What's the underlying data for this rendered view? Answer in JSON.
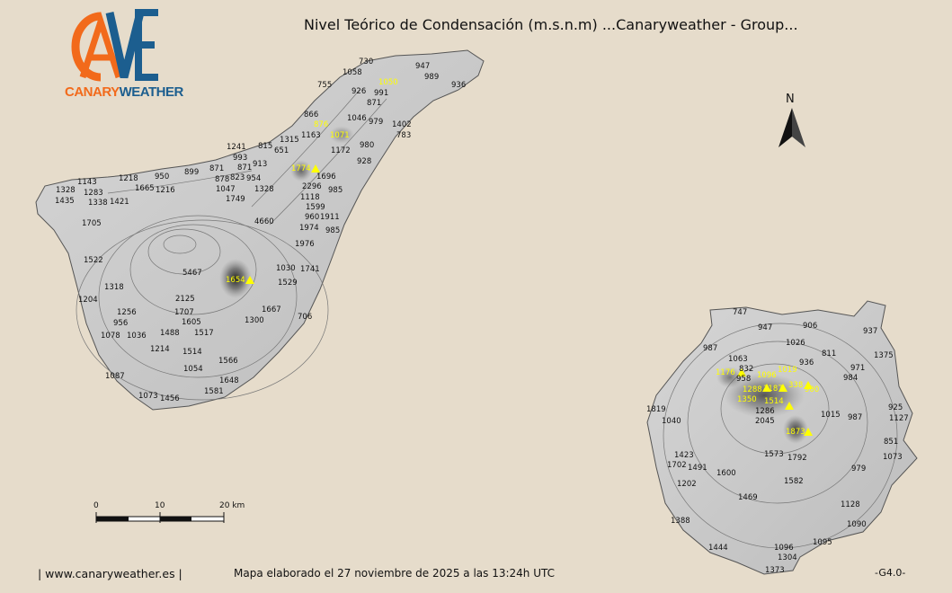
{
  "title": "Nivel Teórico de Condensación (m.s.n.m)  ...Canaryweather - Group...",
  "logo": {
    "letters": "CAVWE",
    "word_part1": "Canary",
    "word_part2": "Weather",
    "colors": {
      "orange": "#f26a1b",
      "blue": "#1c5e8f"
    }
  },
  "north_label": "N",
  "scale_bar": {
    "labels": [
      "0",
      "10",
      "20 km"
    ]
  },
  "footer": {
    "website": "| www.canaryweather.es |",
    "timestamp": "Mapa elaborado el 27 noviembre de 2025 a las 13:24h UTC",
    "version": "-G4.0-"
  },
  "colors": {
    "background": "#e6dccb",
    "highlight_label": "#ffff00",
    "land": "#c8c8c8"
  },
  "tenerife": {
    "elevations": [
      "730",
      "1058",
      "755",
      "926",
      "991",
      "871",
      "947",
      "989",
      "936",
      "866",
      "1046",
      "979",
      "1402",
      "783",
      "1163",
      "980",
      "815",
      "651",
      "1315",
      "1172",
      "928",
      "1241",
      "993",
      "913",
      "871",
      "823",
      "954",
      "899",
      "950",
      "871",
      "878",
      "1047",
      "1749",
      "1328",
      "1696",
      "2296",
      "985",
      "1118",
      "1599",
      "960",
      "1911",
      "4660",
      "1974",
      "985",
      "1976",
      "1218",
      "1665",
      "1216",
      "1328",
      "1143",
      "1283",
      "1338",
      "1421",
      "1435",
      "1705",
      "1522",
      "5467",
      "1030",
      "1741",
      "1529",
      "1318",
      "1204",
      "2125",
      "1707",
      "1256",
      "956",
      "1605",
      "1667",
      "1300",
      "706",
      "1078",
      "1036",
      "1488",
      "1517",
      "1214",
      "1514",
      "1566",
      "1054",
      "1087",
      "1648",
      "1073",
      "1456",
      "1581"
    ],
    "highlighted": [
      "1050",
      "876",
      "1071",
      "1774",
      "1654"
    ]
  },
  "gran_canaria": {
    "elevations": [
      "747",
      "947",
      "906",
      "937",
      "1026",
      "987",
      "811",
      "1375",
      "1063",
      "832",
      "958",
      "936",
      "971",
      "984",
      "1819",
      "1040",
      "1286",
      "2045",
      "1015",
      "987",
      "925",
      "1127",
      "851",
      "1073",
      "1423",
      "1702",
      "1491",
      "1573",
      "1792",
      "1600",
      "979",
      "1202",
      "1582",
      "1469",
      "1128",
      "1388",
      "1090",
      "1444",
      "1095",
      "1096",
      "1304",
      "1373"
    ],
    "highlighted": [
      "1176",
      "1019",
      "1096",
      "1288",
      "1187",
      "338",
      "900",
      "1350",
      "1514",
      "1873"
    ]
  }
}
